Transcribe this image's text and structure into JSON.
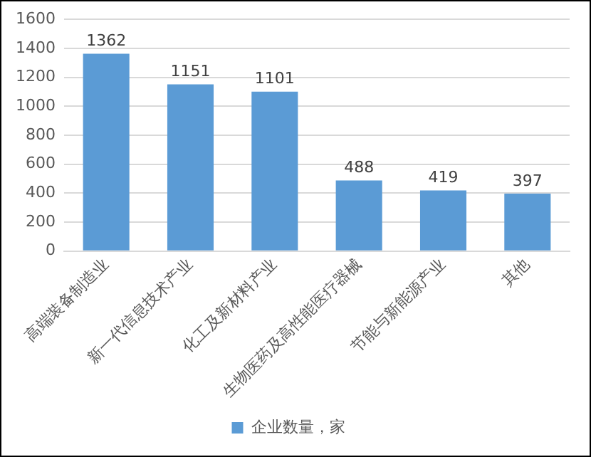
{
  "chart_data": {
    "type": "bar",
    "categories": [
      "高端装备制造业",
      "新一代信息技术产业",
      "化工及新材料产业",
      "生物医药及高性能医疗器械",
      "节能与新能源产业",
      "其他"
    ],
    "series": [
      {
        "name": "企业数量，家",
        "color": "#5b9bd5",
        "values": [
          1362,
          1151,
          1101,
          488,
          419,
          397
        ]
      }
    ],
    "ylim": [
      0,
      1600
    ],
    "yticks": [
      0,
      200,
      400,
      600,
      800,
      1000,
      1200,
      1400,
      1600
    ],
    "grid": "y",
    "legend": "bottom",
    "data_labels": true
  }
}
